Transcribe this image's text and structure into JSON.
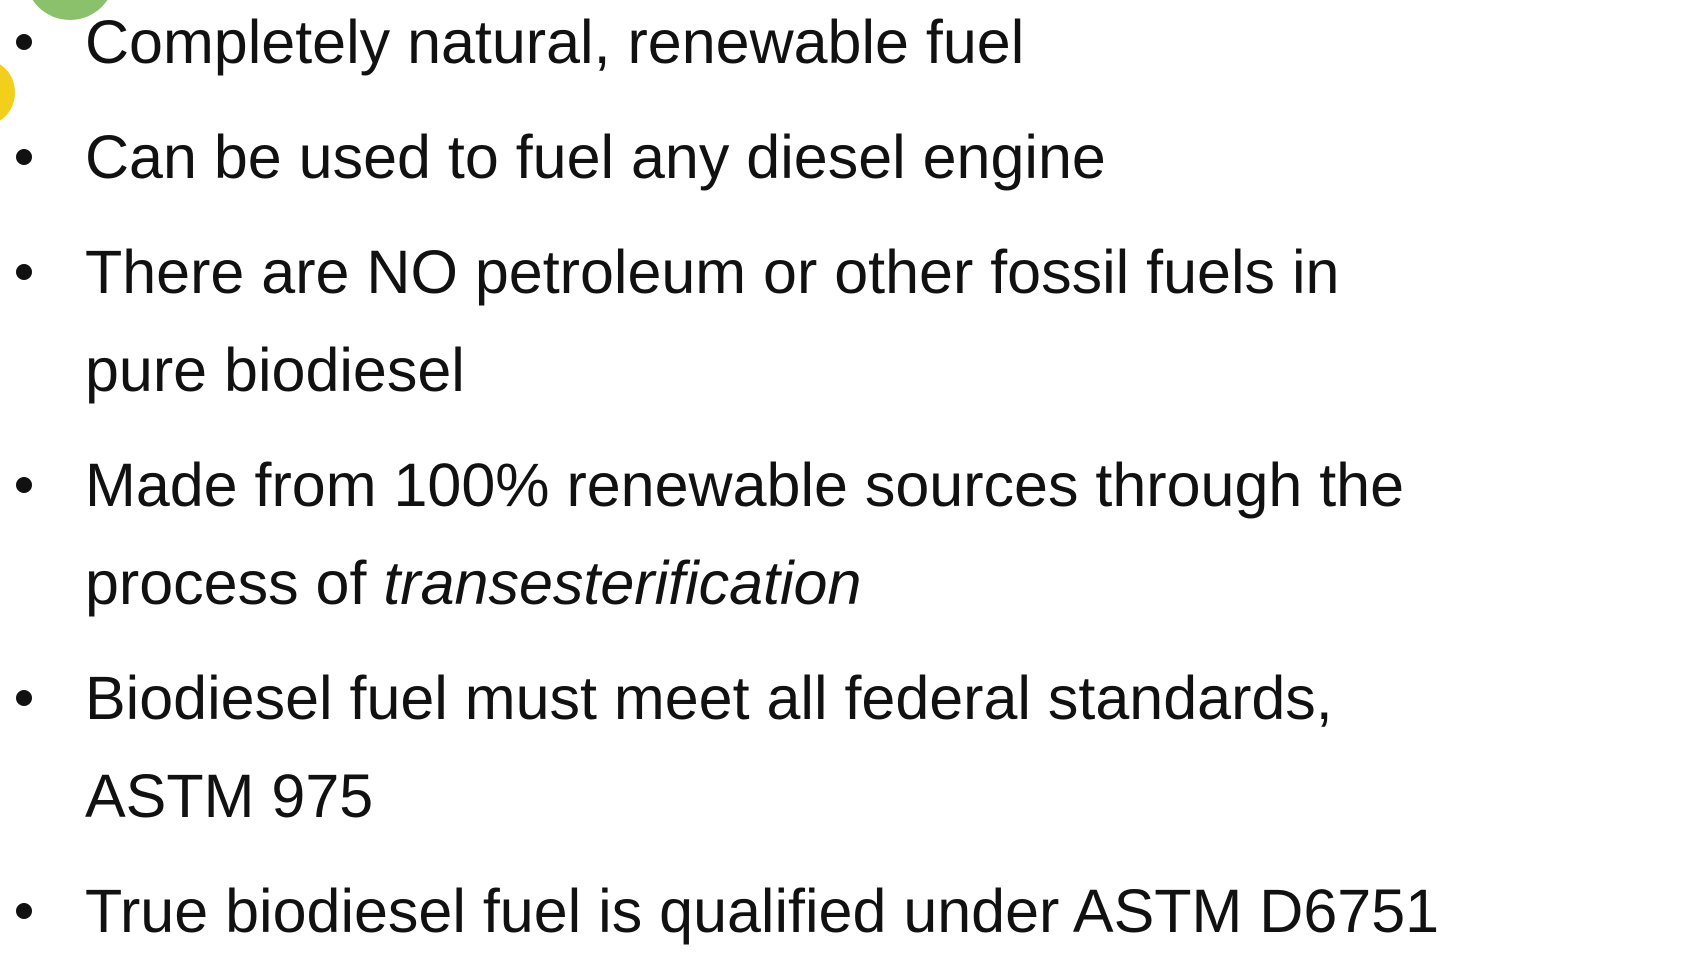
{
  "bullets": [
    {
      "lines": [
        [
          {
            "text": "Completely natural, renewable fuel"
          }
        ]
      ]
    },
    {
      "lines": [
        [
          {
            "text": "Can be used to fuel any diesel engine"
          }
        ]
      ]
    },
    {
      "lines": [
        [
          {
            "text": "There are NO petroleum or other fossil fuels in"
          }
        ],
        [
          {
            "text": "pure biodiesel"
          }
        ]
      ]
    },
    {
      "lines": [
        [
          {
            "text": "Made from 100% renewable sources through the"
          }
        ],
        [
          {
            "text": "process of "
          },
          {
            "text": "transesterification",
            "italic": true
          }
        ]
      ]
    },
    {
      "lines": [
        [
          {
            "text": "Biodiesel fuel must meet all federal standards,"
          }
        ],
        [
          {
            "text": "ASTM 975"
          }
        ]
      ]
    },
    {
      "lines": [
        [
          {
            "text": "True biodiesel fuel is qualified under ASTM D6751"
          }
        ]
      ]
    }
  ]
}
